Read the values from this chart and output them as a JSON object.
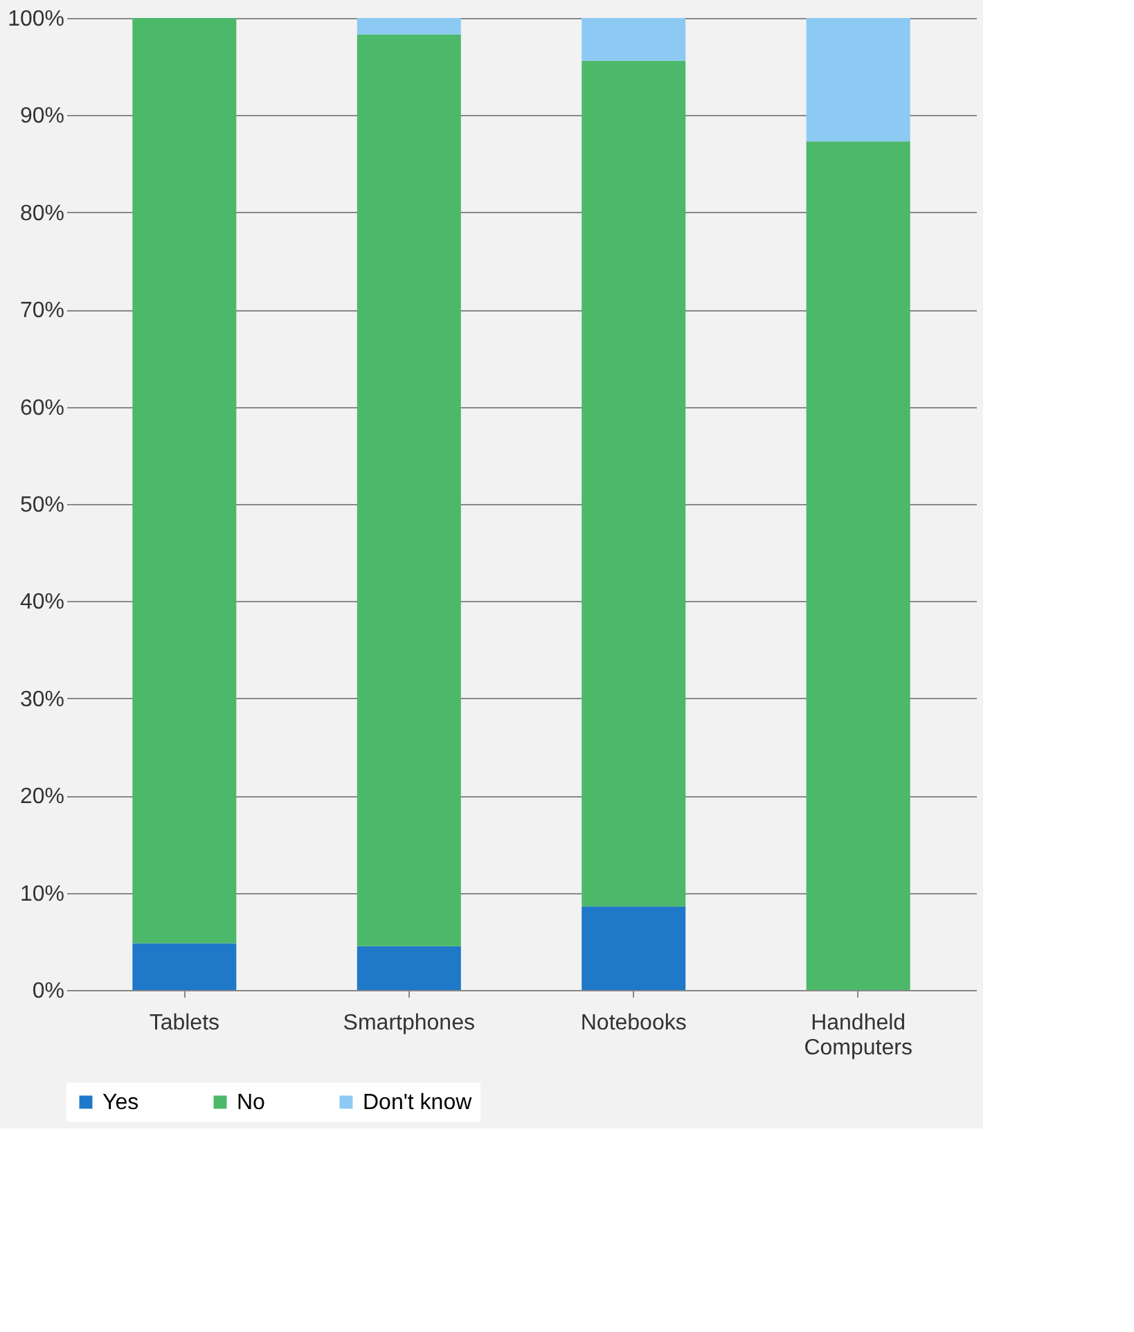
{
  "chart_data": {
    "type": "bar",
    "stacked": true,
    "categories": [
      "Tablets",
      "Smartphones",
      "Notebooks",
      "Handheld Computers"
    ],
    "series": [
      {
        "name": "Yes",
        "color": "#1f78c8",
        "values": [
          4.8,
          4.5,
          8.6,
          0
        ]
      },
      {
        "name": "No",
        "color": "#4cb86a",
        "values": [
          95.2,
          93.8,
          87.0,
          87.3
        ]
      },
      {
        "name": "Don't know",
        "color": "#8ccaf4",
        "values": [
          0,
          1.7,
          4.4,
          12.7
        ]
      }
    ],
    "ylim": [
      0,
      100
    ],
    "yticks": [
      {
        "value": 0,
        "label": "0%"
      },
      {
        "value": 10,
        "label": "10%"
      },
      {
        "value": 20,
        "label": "20%"
      },
      {
        "value": 30,
        "label": "30%"
      },
      {
        "value": 40,
        "label": "40%"
      },
      {
        "value": 50,
        "label": "50%"
      },
      {
        "value": 60,
        "label": "60%"
      },
      {
        "value": 70,
        "label": "70%"
      },
      {
        "value": 80,
        "label": "80%"
      },
      {
        "value": 90,
        "label": "90%"
      },
      {
        "value": 100,
        "label": "100%"
      }
    ],
    "grid": "y",
    "legend": "bottom"
  }
}
